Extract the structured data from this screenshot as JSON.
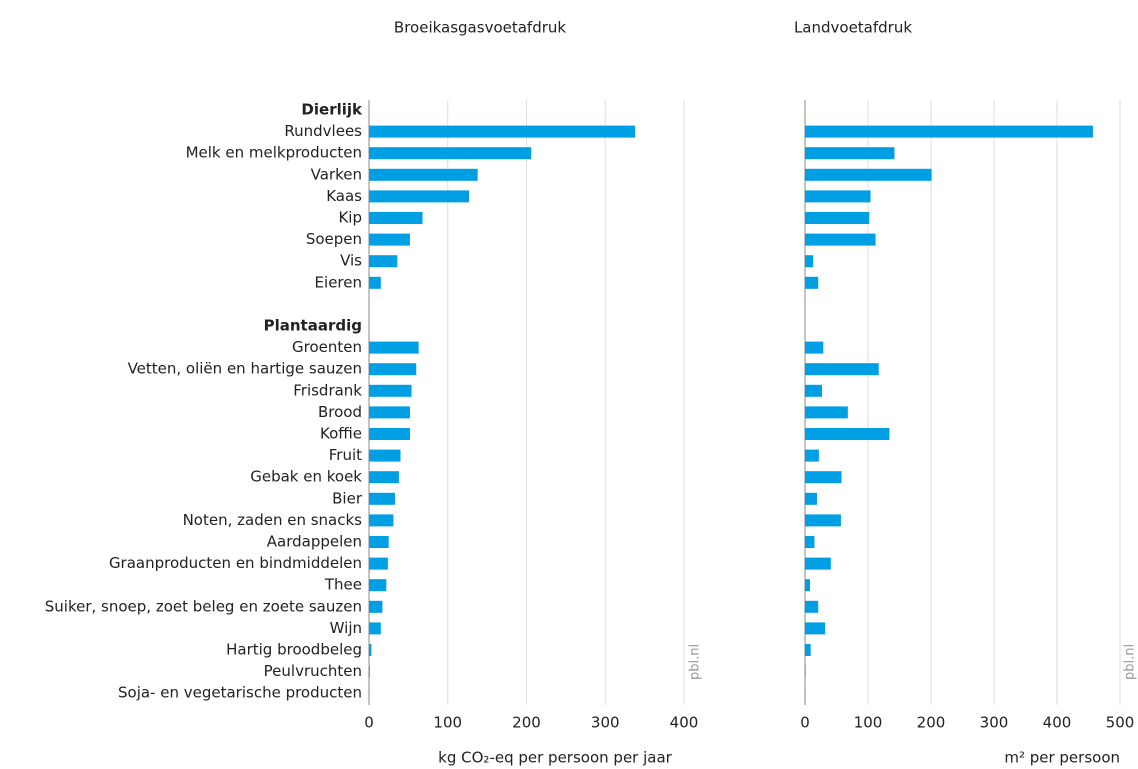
{
  "chart_data": {
    "type": "bar",
    "color": "#009fe3",
    "source": "pbl.nl",
    "groups": [
      {
        "name": "Dierlijk",
        "categories": [
          "Rundvlees",
          "Melk en melkproducten",
          "Varken",
          "Kaas",
          "Kip",
          "Soepen",
          "Vis",
          "Eieren"
        ]
      },
      {
        "name": "Plantaardig",
        "categories": [
          "Groenten",
          "Vetten, oliën en hartige sauzen",
          "Frisdrank",
          "Brood",
          "Koffie",
          "Fruit",
          "Gebak en koek",
          "Bier",
          "Noten, zaden en snacks",
          "Aardappelen",
          "Graanproducten en bindmiddelen",
          "Thee",
          "Suiker, snoep, zoet beleg en zoete sauzen",
          "Wijn",
          "Hartig broodbeleg",
          "Peulvruchten",
          "Soja- en vegetarische producten"
        ]
      }
    ],
    "panels": [
      {
        "title": "Broeikasgasvoetafdruk",
        "xlabel": "kg CO₂-eq per persoon per jaar",
        "xlim": [
          0,
          400
        ],
        "xticks": [
          0,
          100,
          200,
          300,
          400
        ],
        "values": [
          [
            338,
            206,
            138,
            127,
            68,
            52,
            36,
            15
          ],
          [
            63,
            60,
            54,
            52,
            52,
            40,
            38,
            33,
            31,
            25,
            24,
            22,
            17,
            15,
            3,
            1,
            0.5
          ]
        ]
      },
      {
        "title": "Landvoetafdruk",
        "xlabel": "m² per persoon",
        "xlim": [
          0,
          500
        ],
        "xticks": [
          0,
          100,
          200,
          300,
          400,
          500
        ],
        "values": [
          [
            457,
            142,
            201,
            104,
            102,
            112,
            13,
            21
          ],
          [
            29,
            117,
            27,
            68,
            134,
            22,
            58,
            19,
            57,
            15,
            41,
            8,
            21,
            32,
            9,
            1,
            0.5
          ]
        ]
      }
    ]
  }
}
